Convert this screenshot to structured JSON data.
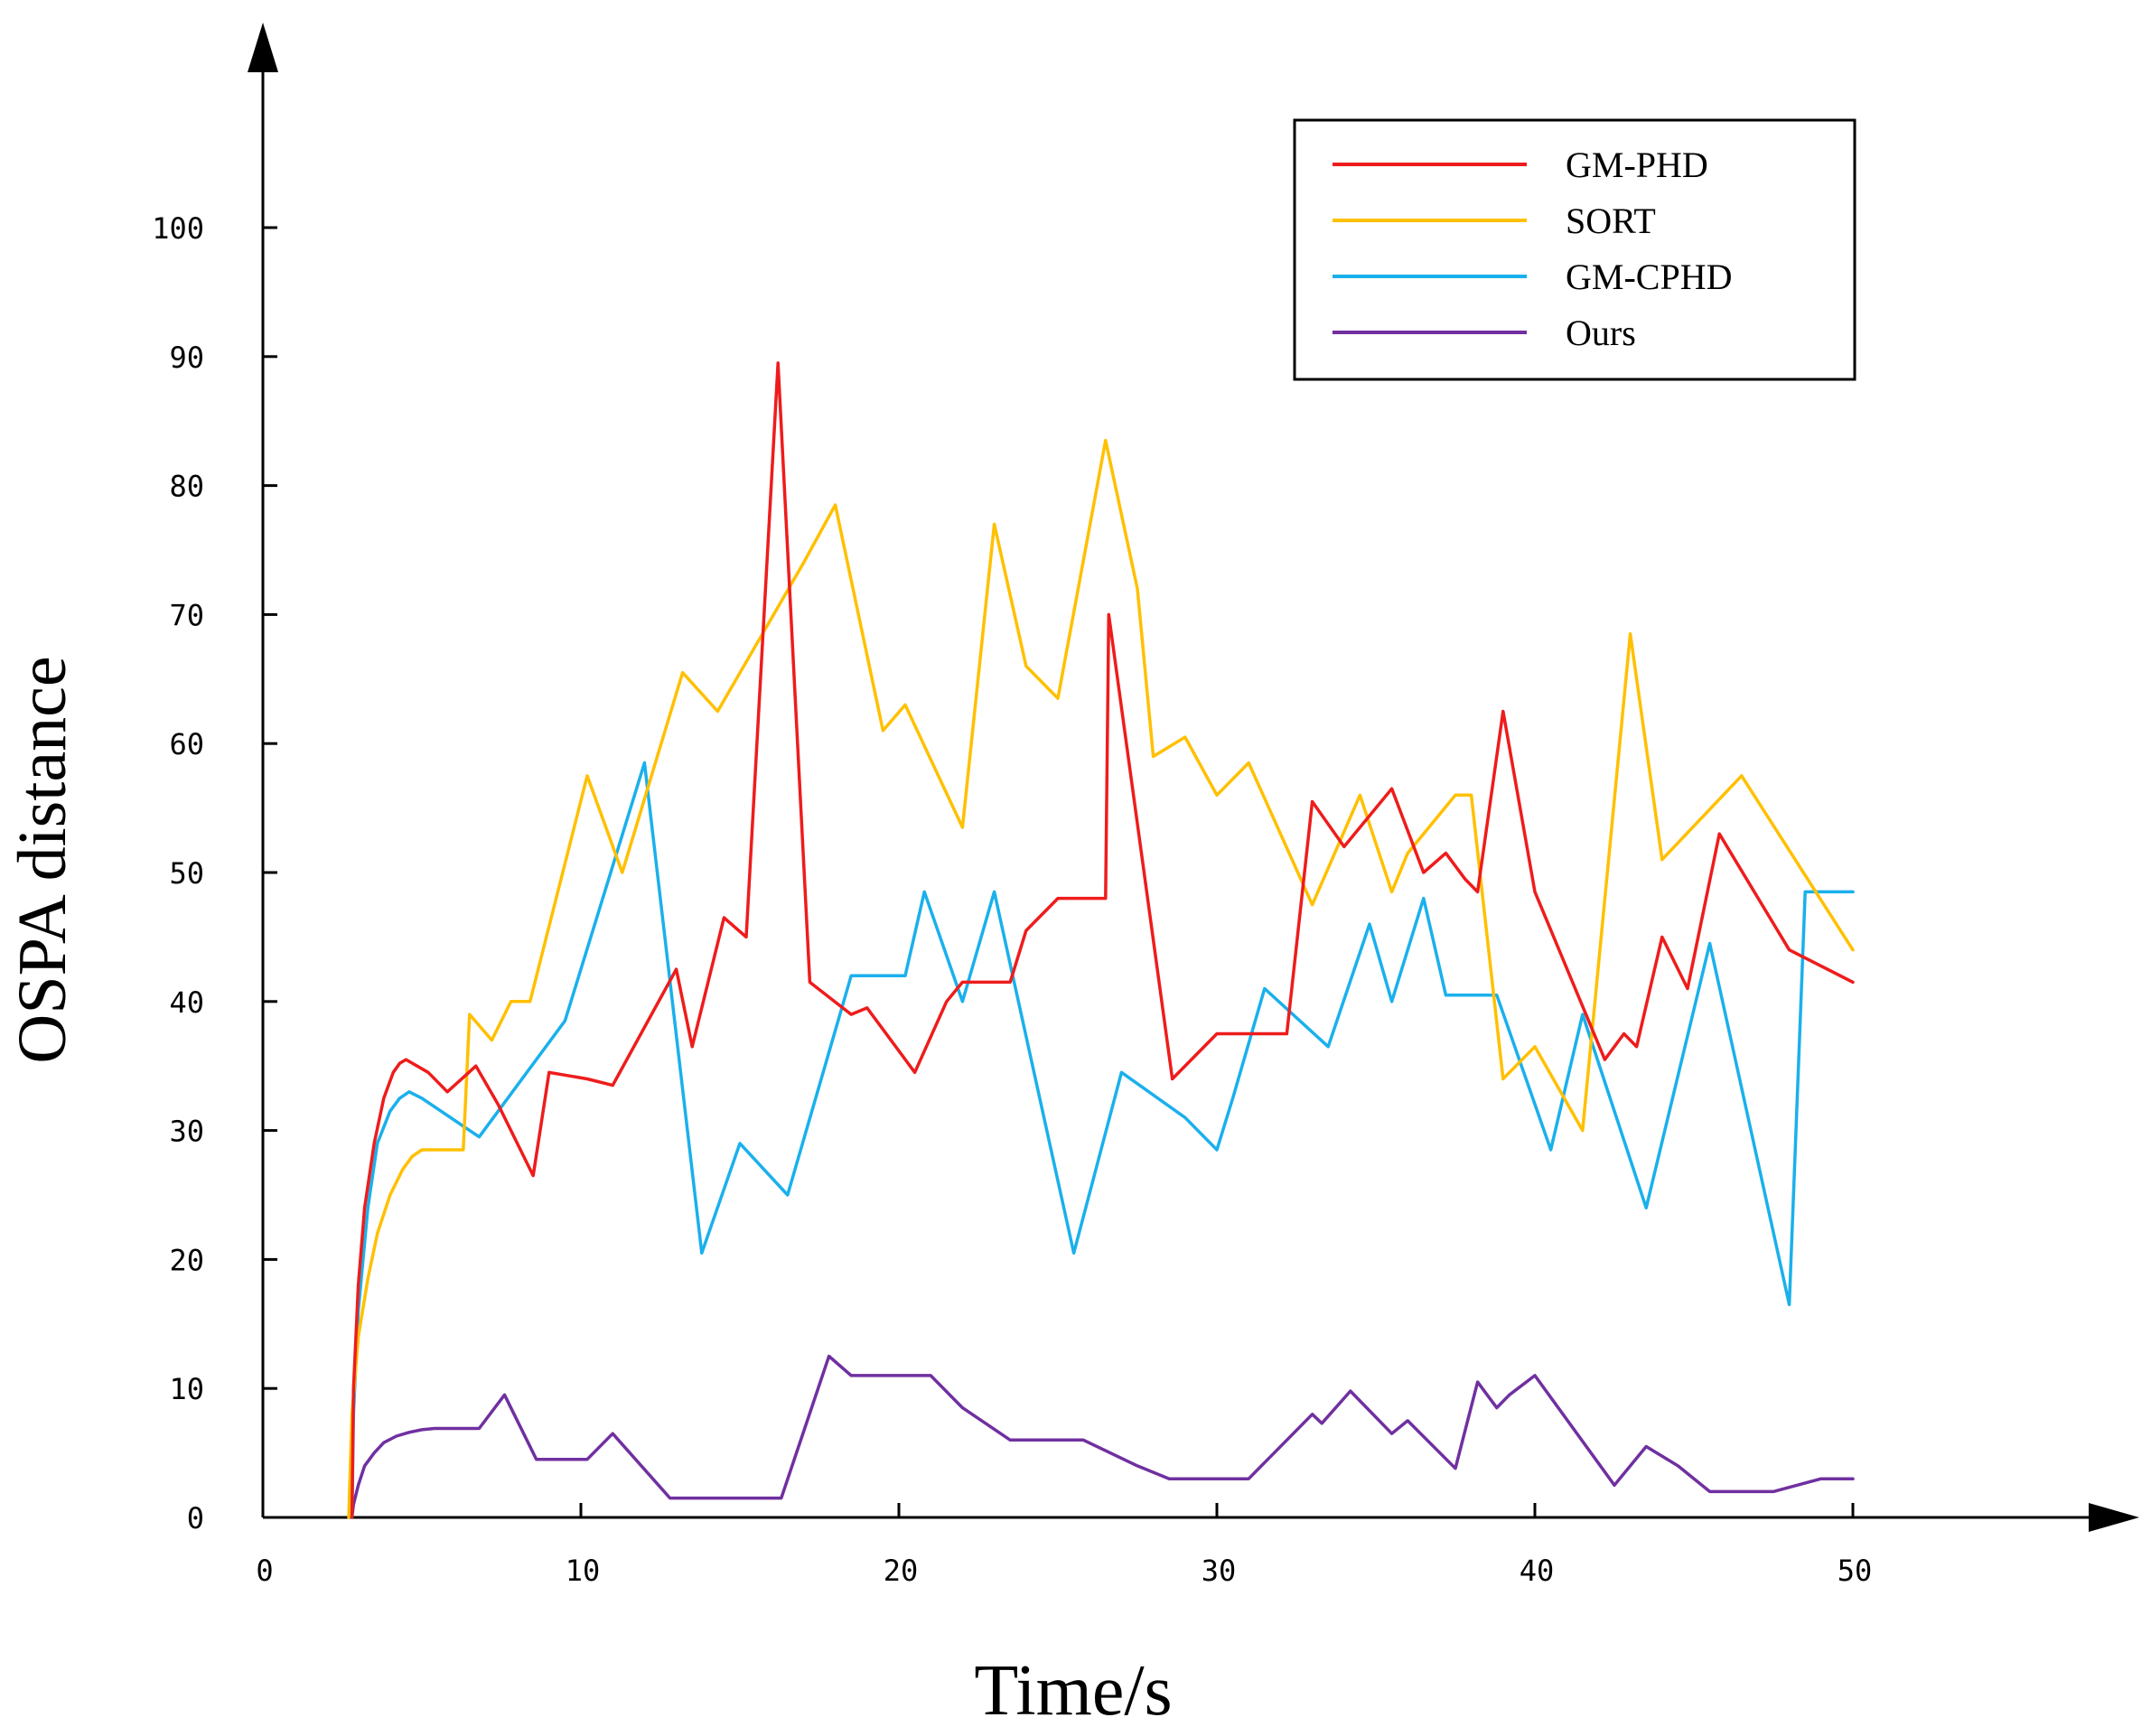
{
  "chart_data": {
    "type": "line",
    "title": "",
    "xlabel": "Time/s",
    "ylabel": "OSPA distance",
    "xlim": [
      0,
      57
    ],
    "ylim": [
      0,
      110
    ],
    "xticks": [
      0,
      10,
      20,
      30,
      40,
      50
    ],
    "yticks": [
      0,
      10,
      20,
      30,
      40,
      50,
      60,
      70,
      80,
      90,
      100
    ],
    "legend": "top-right",
    "grid": false,
    "series": [
      {
        "name": "GM-PHD",
        "color": "#ee1c1c",
        "x": [
          2.8,
          2.85,
          3.0,
          3.2,
          3.5,
          3.8,
          4.1,
          4.3,
          4.5,
          5.2,
          5.8,
          6.7,
          7.4,
          8.5,
          9.0,
          10.2,
          11.0,
          13.0,
          13.5,
          14.5,
          15.2,
          16.2,
          17.2,
          17.3,
          18.5,
          19.0,
          20.5,
          21.5,
          22.0,
          23.5,
          24.0,
          25.0,
          26.5,
          26.6,
          28.6,
          30.0,
          30.5,
          32.2,
          33.0,
          34.0,
          35.5,
          36.5,
          37.2,
          37.8,
          38.2,
          39.0,
          40.0,
          42.2,
          42.8,
          43.2,
          44.0,
          44.8,
          45.8,
          48.0,
          50.0
        ],
        "y": [
          0,
          10,
          18,
          24,
          29,
          32.5,
          34.5,
          35.2,
          35.5,
          34.5,
          33,
          35,
          32,
          26.5,
          34.5,
          34,
          33.5,
          42.5,
          36.5,
          46.5,
          45,
          89.5,
          41.5,
          41.3,
          39,
          39.5,
          34.5,
          40,
          41.5,
          41.5,
          45.5,
          48,
          48,
          70,
          34,
          37.5,
          37.5,
          37.5,
          55.5,
          52,
          56.5,
          50,
          51.5,
          49.5,
          48.5,
          62.5,
          48.5,
          35.5,
          37.5,
          36.5,
          45,
          41,
          53,
          44,
          41.5
        ]
      },
      {
        "name": "SORT",
        "color": "#ffc000",
        "x": [
          2.7,
          2.8,
          3.0,
          3.3,
          3.6,
          4.0,
          4.4,
          4.7,
          5.0,
          5.3,
          6.3,
          6.5,
          7.2,
          7.8,
          8.4,
          10.2,
          11.3,
          13.2,
          14.3,
          17.0,
          18.0,
          19.5,
          20.2,
          22.0,
          23.0,
          24.0,
          25.0,
          26.5,
          27.5,
          28.0,
          29.0,
          30.0,
          31.0,
          33.0,
          34.5,
          35.5,
          36.0,
          37.5,
          38.0,
          39.0,
          40.0,
          41.5,
          43.0,
          44.0,
          46.5,
          50.0
        ],
        "y": [
          0,
          8,
          14,
          18.5,
          22,
          25,
          27,
          28,
          28.5,
          28.5,
          28.5,
          39,
          37,
          40,
          40,
          57.5,
          50,
          65.5,
          62.5,
          74,
          78.5,
          61,
          63,
          53.5,
          77,
          66,
          63.5,
          83.5,
          72,
          59,
          60.5,
          56,
          58.5,
          47.5,
          56,
          48.5,
          51.5,
          56,
          56,
          34,
          36.5,
          30,
          68.5,
          51,
          57.5,
          44
        ]
      },
      {
        "name": "GM-CPHD",
        "color": "#1ab0ec",
        "x": [
          2.8,
          2.85,
          3.0,
          3.3,
          3.6,
          4.0,
          4.3,
          4.6,
          5.0,
          6.8,
          9.5,
          12.0,
          13.8,
          15.0,
          16.5,
          18.5,
          20.2,
          20.8,
          22.0,
          23.0,
          25.5,
          27.0,
          29.0,
          30.0,
          30.5,
          31.5,
          33.5,
          34.8,
          35.5,
          36.5,
          37.2,
          38.0,
          38.8,
          40.5,
          41.5,
          43.5,
          45.5,
          48.0,
          48.5,
          50.0
        ],
        "y": [
          0,
          8,
          16,
          24,
          29,
          31.5,
          32.5,
          33,
          32.5,
          29.5,
          38.5,
          58.5,
          20.5,
          29,
          25,
          42,
          42,
          48.5,
          40,
          48.5,
          20.5,
          34.5,
          31,
          28.5,
          32.5,
          41,
          36.5,
          46,
          40,
          48,
          40.5,
          40.5,
          40.5,
          28.5,
          39,
          24,
          44.5,
          16.5,
          48.5,
          48.5
        ]
      },
      {
        "name": "Ours",
        "color": "#7030a0",
        "x": [
          2.8,
          2.85,
          3.0,
          3.2,
          3.5,
          3.8,
          4.2,
          4.6,
          5.0,
          5.4,
          6.8,
          7.6,
          8.6,
          10.2,
          11.0,
          12.8,
          13.5,
          16.3,
          17.8,
          18.5,
          21.0,
          22.0,
          23.5,
          25.3,
          25.8,
          27.5,
          28.5,
          30.5,
          31.0,
          33.0,
          33.3,
          34.2,
          35.5,
          36.0,
          37.5,
          38.2,
          38.8,
          39.2,
          40.0,
          42.5,
          43.5,
          44.5,
          45.5,
          47.5,
          49.0,
          50.0
        ],
        "y": [
          0,
          1,
          2.5,
          4,
          5,
          5.8,
          6.3,
          6.6,
          6.8,
          6.9,
          6.9,
          9.5,
          4.5,
          4.5,
          6.5,
          1.5,
          1.5,
          1.5,
          12.5,
          11,
          11,
          8.5,
          6,
          6,
          6,
          4,
          3,
          3,
          3,
          8,
          7.3,
          9.8,
          6.5,
          7.5,
          3.8,
          10.5,
          8.5,
          9.5,
          11,
          2.5,
          5.5,
          4,
          2,
          2,
          3,
          3
        ]
      }
    ]
  }
}
